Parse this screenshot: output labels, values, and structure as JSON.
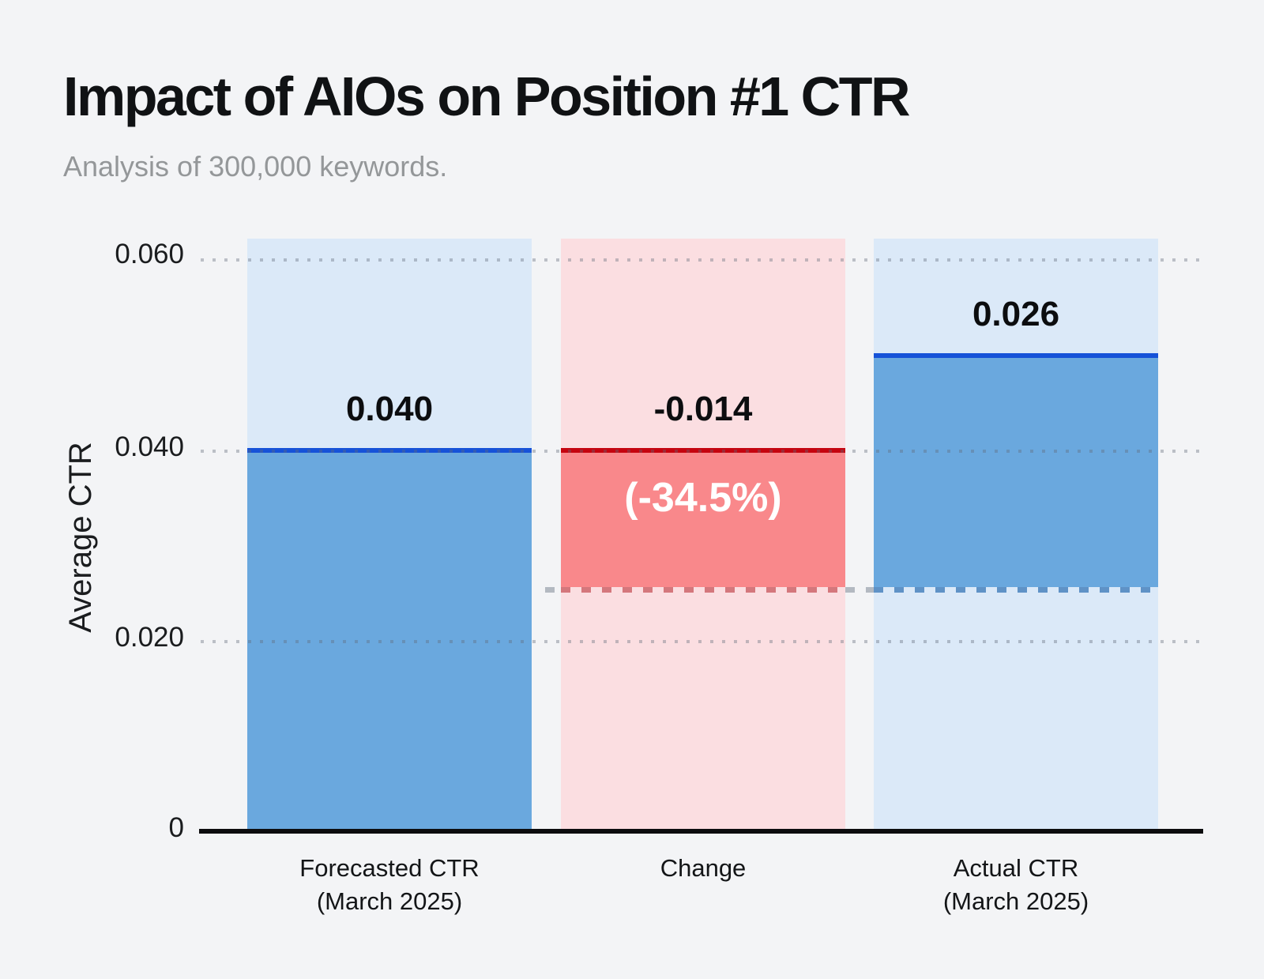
{
  "header": {
    "title": "Impact of AIOs on Position #1 CTR",
    "subtitle": "Analysis of 300,000 keywords."
  },
  "y_axis": {
    "label": "Average CTR",
    "ticks": [
      "0.060",
      "0.040",
      "0.020",
      "0"
    ]
  },
  "bars": [
    {
      "label_line1": "Forecasted CTR",
      "label_line2": "(March 2025)",
      "value_label": "0.040"
    },
    {
      "label_line1": "Change",
      "label_line2": "",
      "value_label": "-0.014",
      "secondary_label": "(-34.5%)"
    },
    {
      "label_line1": "Actual CTR",
      "label_line2": "(March 2025)",
      "value_label": "0.026"
    }
  ],
  "chart_data": {
    "type": "bar",
    "subtype": "waterfall",
    "title": "Impact of AIOs on Position #1 CTR",
    "subtitle": "Analysis of 300,000 keywords.",
    "categories": [
      "Forecasted CTR (March 2025)",
      "Change",
      "Actual CTR (March 2025)"
    ],
    "values": [
      0.04,
      -0.014,
      0.026
    ],
    "value_labels": [
      "0.040",
      "-0.014",
      "0.026"
    ],
    "change_percent_label": "(-34.5%)",
    "change_percent": -34.5,
    "ylabel": "Average CTR",
    "xlabel": "",
    "yticks": [
      0,
      0.02,
      0.04,
      0.06
    ],
    "ylim": [
      0,
      0.062
    ],
    "grid": "horizontal dotted",
    "legend_position": "none",
    "notes": "Change bar floats from 0.040 down to 0.026; dashed guide line at 0.026 connects Change bottom to Actual bar; each column has a full-height light tint behind it.",
    "colors": {
      "bar_blue": "#6aa8de",
      "bar_blue_tint": "#dbe9f8",
      "line_blue": "#1652d8",
      "bar_red": "#f9888b",
      "bar_red_tint": "#fbdee1",
      "line_red": "#c5040f",
      "grid_dot": "#c6cad1",
      "axis": "#0c0c0e",
      "title_text": "#101214",
      "subtitle_text": "#949799",
      "value_text": "#0c0d0f",
      "percent_text": "#ffffff",
      "background": "#f3f4f6"
    }
  }
}
